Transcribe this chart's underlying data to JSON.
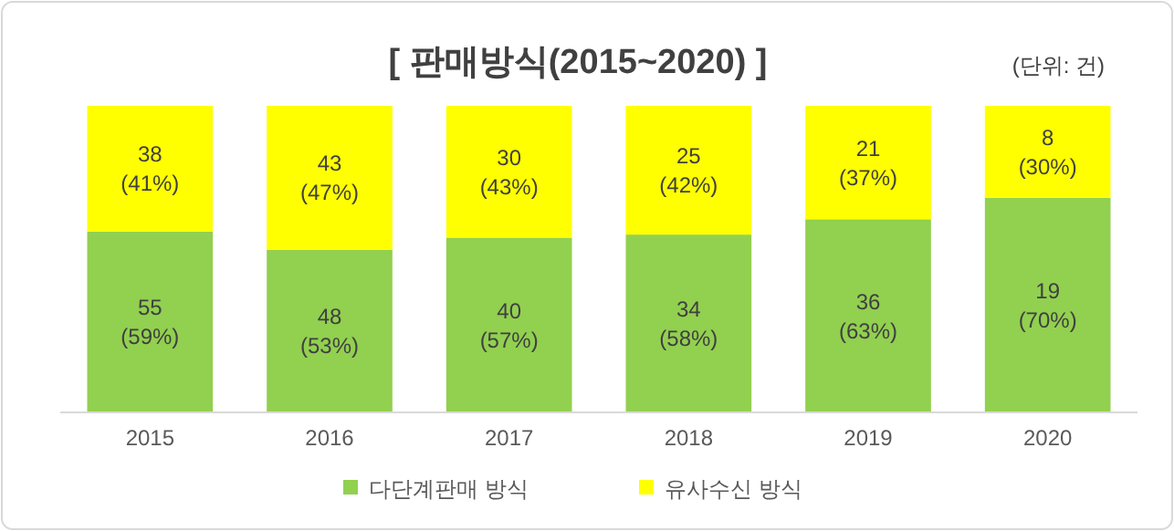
{
  "chart_data": {
    "type": "bar",
    "stacked": true,
    "title": "[ 판매방식(2015~2020) ]",
    "annotations": [
      "(단위: 건)"
    ],
    "categories": [
      "2015",
      "2016",
      "2017",
      "2018",
      "2019",
      "2020"
    ],
    "ylim": [
      0,
      100
    ],
    "legend": "bottom",
    "series": [
      {
        "name": "다단계판매 방식",
        "color": "#92d050",
        "values": [
          59,
          53,
          57,
          58,
          63,
          70
        ],
        "value_labels": [
          "55\n(59%)",
          "48\n(53%)",
          "40\n(57%)",
          "34\n(58%)",
          "36\n(63%)",
          "19\n(70%)"
        ]
      },
      {
        "name": "유사수신 방식",
        "color": "#ffff00",
        "values": [
          41,
          47,
          43,
          42,
          37,
          30
        ],
        "value_labels": [
          "38\n(41%)",
          "43\n(47%)",
          "30\n(43%)",
          "25\n(42%)",
          "21\n(37%)",
          "8\n(30%)"
        ]
      }
    ]
  }
}
